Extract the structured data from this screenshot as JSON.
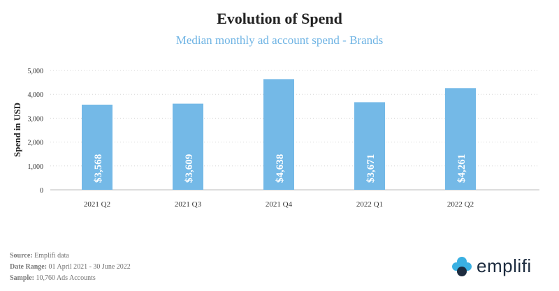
{
  "chart_data": {
    "type": "bar",
    "title": "Evolution of Spend",
    "subtitle": "Median monthly ad account spend - Brands",
    "categories": [
      "2021 Q2",
      "2021 Q3",
      "2021 Q4",
      "2022 Q1",
      "2022 Q2"
    ],
    "values": [
      3568,
      3609,
      4638,
      3671,
      4261
    ],
    "data_labels": [
      "$3,568",
      "$3,609",
      "$4,638",
      "$3,671",
      "$4,261"
    ],
    "xlabel": "",
    "ylabel": "Spend in USD",
    "ylim": [
      0,
      5000
    ],
    "yticks": [
      0,
      1000,
      2000,
      3000,
      4000,
      5000
    ],
    "ytick_labels": [
      "0",
      "1,000",
      "2,000",
      "3,000",
      "4,000",
      "5,000"
    ],
    "grid": true,
    "bar_color": "#74b9e7",
    "label_color": "#ffffff"
  },
  "footer": {
    "source_label": "Source:",
    "source_value": "Emplifi data",
    "range_label": "Date Range:",
    "range_value": "01 April 2021 - 30 June 2022",
    "sample_label": "Sample:",
    "sample_value": "10,760 Ads Accounts"
  },
  "logo": {
    "text": "emplifi",
    "icon": "emplifi-logo-icon",
    "colors": [
      "#3ab0e2",
      "#1d2c3f"
    ]
  }
}
